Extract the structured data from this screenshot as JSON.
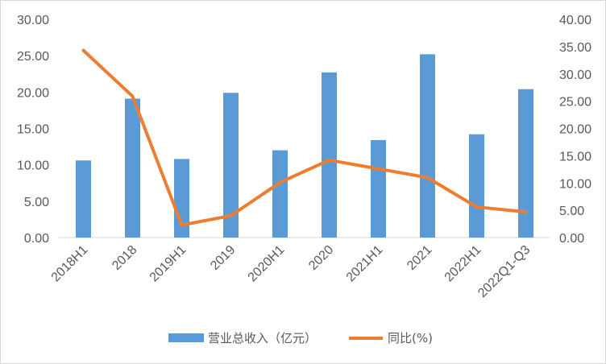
{
  "chart_data": {
    "type": "bar+line",
    "categories": [
      "2018H1",
      "2018",
      "2019H1",
      "2019",
      "2020H1",
      "2020",
      "2021H1",
      "2021",
      "2022H1",
      "2022Q1-Q3"
    ],
    "series": [
      {
        "name": "营业总收入（亿元）",
        "type": "bar",
        "axis": "left",
        "color": "#5b9bd5",
        "values": [
          10.6,
          19.1,
          10.8,
          19.9,
          12.0,
          22.7,
          13.4,
          25.2,
          14.2,
          20.4
        ]
      },
      {
        "name": "同比(%)",
        "type": "line",
        "axis": "right",
        "color": "#ed7d31",
        "values": [
          34.3,
          25.9,
          2.3,
          4.0,
          10.1,
          14.2,
          12.6,
          11.0,
          5.6,
          4.7
        ]
      }
    ],
    "y_left": {
      "ylim": [
        0,
        30
      ],
      "ticks": [
        "0.00",
        "5.00",
        "10.00",
        "15.00",
        "20.00",
        "25.00",
        "30.00"
      ]
    },
    "y_right": {
      "ylim": [
        0,
        40
      ],
      "ticks": [
        "0.00",
        "5.00",
        "10.00",
        "15.00",
        "20.00",
        "25.00",
        "30.00",
        "35.00",
        "40.00"
      ]
    },
    "grid": false,
    "legend_position": "bottom"
  }
}
